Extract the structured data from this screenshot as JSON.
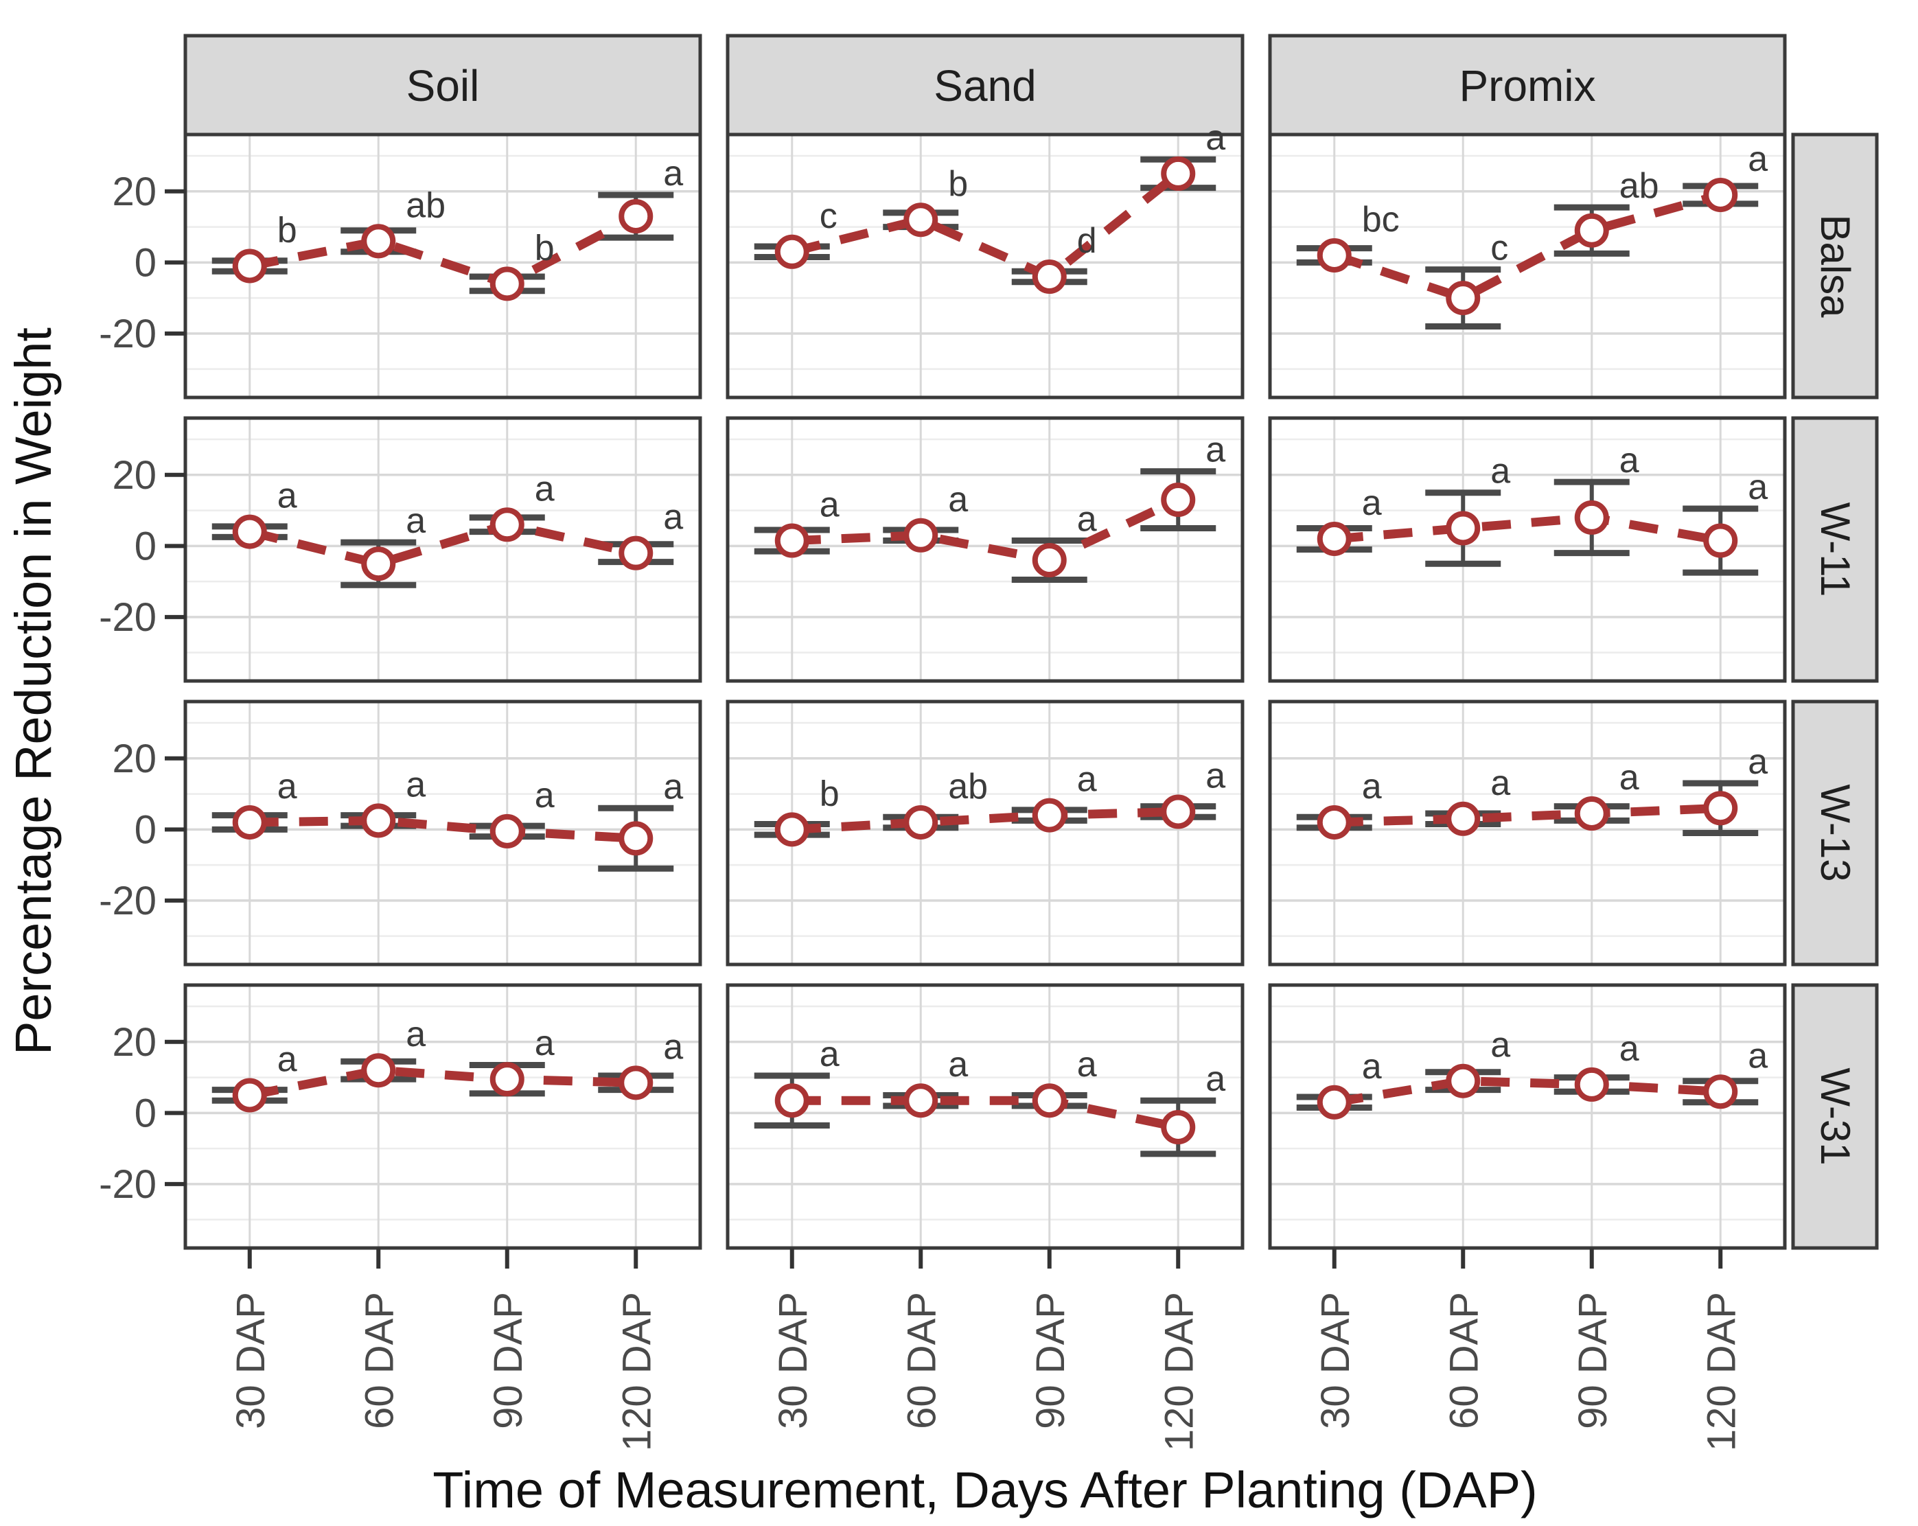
{
  "chart_data": {
    "type": "line",
    "title": "",
    "xlabel": "Time of Measurement, Days After Planting (DAP)",
    "ylabel": "Percentage Reduction in Weight",
    "x_categories": [
      "30 DAP",
      "60 DAP",
      "90 DAP",
      "120 DAP"
    ],
    "y_ticks": [
      20,
      0,
      -20
    ],
    "y_minor_gridlines": [
      30,
      10,
      -10,
      -30
    ],
    "ylim": [
      -38,
      36
    ],
    "grid": true,
    "legend": "none",
    "facet_grid": {
      "columns": [
        "Soil",
        "Sand",
        "Promix"
      ],
      "rows": [
        "Balsa",
        "W-11",
        "W-13",
        "W-31"
      ]
    },
    "panels": [
      {
        "row": "Balsa",
        "col": "Soil",
        "points": [
          {
            "x": "30 DAP",
            "y": -1,
            "err": 1.5,
            "letter": "b"
          },
          {
            "x": "60 DAP",
            "y": 6,
            "err": 3,
            "letter": "ab"
          },
          {
            "x": "90 DAP",
            "y": -6,
            "err": 2,
            "letter": "b"
          },
          {
            "x": "120 DAP",
            "y": 13,
            "err": 6,
            "letter": "a"
          }
        ]
      },
      {
        "row": "Balsa",
        "col": "Sand",
        "points": [
          {
            "x": "30 DAP",
            "y": 3,
            "err": 1.5,
            "letter": "c"
          },
          {
            "x": "60 DAP",
            "y": 12,
            "err": 2,
            "letter": "b"
          },
          {
            "x": "90 DAP",
            "y": -4,
            "err": 1.5,
            "letter": "d"
          },
          {
            "x": "120 DAP",
            "y": 25,
            "err": 4,
            "letter": "a"
          }
        ]
      },
      {
        "row": "Balsa",
        "col": "Promix",
        "points": [
          {
            "x": "30 DAP",
            "y": 2,
            "err": 2,
            "letter": "bc"
          },
          {
            "x": "60 DAP",
            "y": -10,
            "err": 8,
            "letter": "c"
          },
          {
            "x": "90 DAP",
            "y": 9,
            "err": 6.5,
            "letter": "ab"
          },
          {
            "x": "120 DAP",
            "y": 19,
            "err": 2.5,
            "letter": "a"
          }
        ]
      },
      {
        "row": "W-11",
        "col": "Soil",
        "points": [
          {
            "x": "30 DAP",
            "y": 4,
            "err": 1.5,
            "letter": "a"
          },
          {
            "x": "60 DAP",
            "y": -5,
            "err": 6,
            "letter": "a"
          },
          {
            "x": "90 DAP",
            "y": 6,
            "err": 2,
            "letter": "a"
          },
          {
            "x": "120 DAP",
            "y": -2,
            "err": 2.5,
            "letter": "a"
          }
        ]
      },
      {
        "row": "W-11",
        "col": "Sand",
        "points": [
          {
            "x": "30 DAP",
            "y": 1.5,
            "err": 3,
            "letter": "a"
          },
          {
            "x": "60 DAP",
            "y": 3,
            "err": 1.5,
            "letter": "a"
          },
          {
            "x": "90 DAP",
            "y": -4,
            "err": 5.5,
            "letter": "a"
          },
          {
            "x": "120 DAP",
            "y": 13,
            "err": 8,
            "letter": "a"
          }
        ]
      },
      {
        "row": "W-11",
        "col": "Promix",
        "points": [
          {
            "x": "30 DAP",
            "y": 2,
            "err": 3,
            "letter": "a"
          },
          {
            "x": "60 DAP",
            "y": 5,
            "err": 10,
            "letter": "a"
          },
          {
            "x": "90 DAP",
            "y": 8,
            "err": 10,
            "letter": "a"
          },
          {
            "x": "120 DAP",
            "y": 1.5,
            "err": 9,
            "letter": "a"
          }
        ]
      },
      {
        "row": "W-13",
        "col": "Soil",
        "points": [
          {
            "x": "30 DAP",
            "y": 2,
            "err": 2,
            "letter": "a"
          },
          {
            "x": "60 DAP",
            "y": 2.5,
            "err": 1.5,
            "letter": "a"
          },
          {
            "x": "90 DAP",
            "y": -0.5,
            "err": 1.5,
            "letter": "a"
          },
          {
            "x": "120 DAP",
            "y": -2.5,
            "err": 8.5,
            "letter": "a"
          }
        ]
      },
      {
        "row": "W-13",
        "col": "Sand",
        "points": [
          {
            "x": "30 DAP",
            "y": 0,
            "err": 1.5,
            "letter": "b"
          },
          {
            "x": "60 DAP",
            "y": 2,
            "err": 1.5,
            "letter": "ab"
          },
          {
            "x": "90 DAP",
            "y": 4,
            "err": 1.5,
            "letter": "a"
          },
          {
            "x": "120 DAP",
            "y": 5,
            "err": 1.5,
            "letter": "a"
          }
        ]
      },
      {
        "row": "W-13",
        "col": "Promix",
        "points": [
          {
            "x": "30 DAP",
            "y": 2,
            "err": 1.5,
            "letter": "a"
          },
          {
            "x": "60 DAP",
            "y": 3,
            "err": 1.5,
            "letter": "a"
          },
          {
            "x": "90 DAP",
            "y": 4.5,
            "err": 2,
            "letter": "a"
          },
          {
            "x": "120 DAP",
            "y": 6,
            "err": 7,
            "letter": "a"
          }
        ]
      },
      {
        "row": "W-31",
        "col": "Soil",
        "points": [
          {
            "x": "30 DAP",
            "y": 5,
            "err": 1.5,
            "letter": "a"
          },
          {
            "x": "60 DAP",
            "y": 12,
            "err": 2.5,
            "letter": "a"
          },
          {
            "x": "90 DAP",
            "y": 9.5,
            "err": 4,
            "letter": "a"
          },
          {
            "x": "120 DAP",
            "y": 8.5,
            "err": 2,
            "letter": "a"
          }
        ]
      },
      {
        "row": "W-31",
        "col": "Sand",
        "points": [
          {
            "x": "30 DAP",
            "y": 3.5,
            "err": 7,
            "letter": "a"
          },
          {
            "x": "60 DAP",
            "y": 3.5,
            "err": 1.5,
            "letter": "a"
          },
          {
            "x": "90 DAP",
            "y": 3.5,
            "err": 1.5,
            "letter": "a"
          },
          {
            "x": "120 DAP",
            "y": -4,
            "err": 7.5,
            "letter": "a"
          }
        ]
      },
      {
        "row": "W-31",
        "col": "Promix",
        "points": [
          {
            "x": "30 DAP",
            "y": 3,
            "err": 1.5,
            "letter": "a"
          },
          {
            "x": "60 DAP",
            "y": 9,
            "err": 2.5,
            "letter": "a"
          },
          {
            "x": "90 DAP",
            "y": 8,
            "err": 2,
            "letter": "a"
          },
          {
            "x": "120 DAP",
            "y": 6,
            "err": 3,
            "letter": "a"
          }
        ]
      }
    ],
    "style": {
      "line_color": "#a93434",
      "marker_color": "#a93434",
      "errorbar_color": "#4a4a4a",
      "letter_color": "#3b3b3b",
      "strip_fill": "#d9d9d9",
      "strip_text_color": "#1f1f1f",
      "border_color": "#3a3a3a",
      "grid_major_color": "#d8d8d8",
      "grid_minor_color": "#ececec",
      "tick_label_color": "#4a4a4a",
      "axis_title_color": "#111111",
      "background": "#ffffff"
    }
  }
}
